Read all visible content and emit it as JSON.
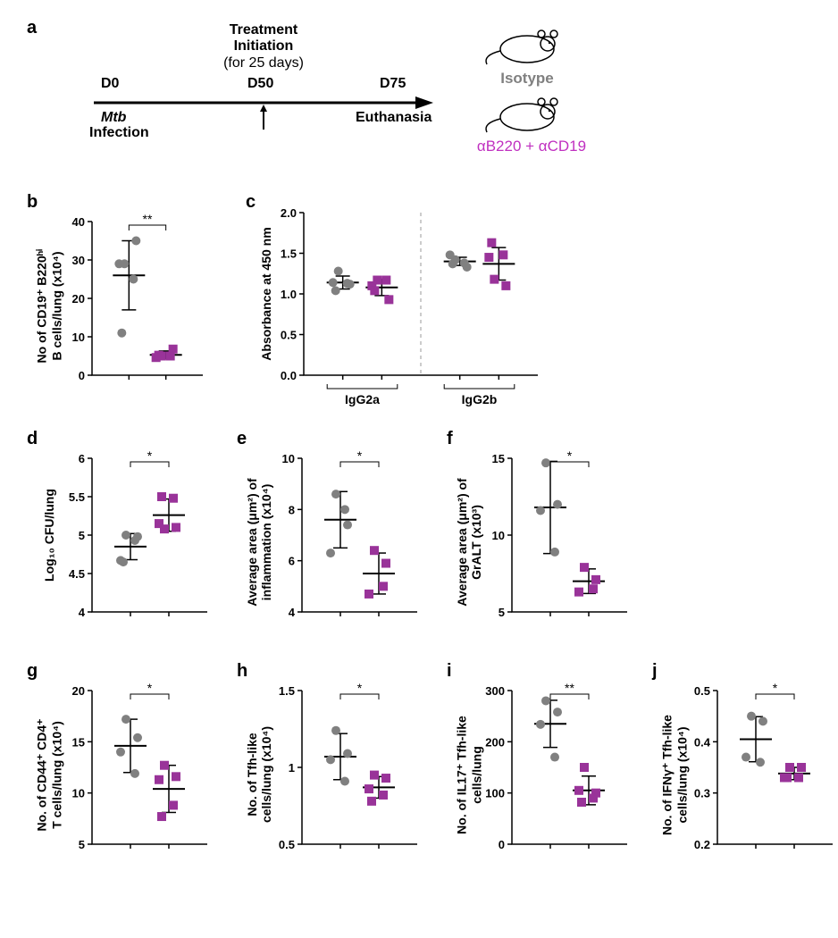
{
  "colors": {
    "gray_marker": "#808080",
    "purple_marker": "#993399",
    "purple_label": "#c030c0",
    "black": "#000000",
    "error_bar": "#000000"
  },
  "panel_a": {
    "label": "a",
    "title_lines": [
      "Treatment",
      "Initiation",
      "(for 25 days)"
    ],
    "d0": "D0",
    "d50": "D50",
    "d75": "D75",
    "mtb": "Mtb",
    "infection": "Infection",
    "euthanasia": "Euthanasia",
    "isotype_label": "Isotype",
    "treatment_label": "αB220 + αCD19"
  },
  "panel_b": {
    "label": "b",
    "ylabel": "No of CD19⁺ B220ʰⁱ\nB cells/lung (x10⁴)",
    "ylim": [
      0,
      40
    ],
    "yticks": [
      0,
      10,
      20,
      30,
      40
    ],
    "sig": "**",
    "groups": [
      {
        "color": "#808080",
        "shape": "circle",
        "mean": 26,
        "sd": 9,
        "points": [
          29,
          35,
          29,
          25,
          11
        ]
      },
      {
        "color": "#993399",
        "shape": "square",
        "mean": 5.3,
        "sd": 1.0,
        "points": [
          5.0,
          6.8,
          4.6,
          5.0,
          5.2
        ]
      }
    ]
  },
  "panel_c": {
    "label": "c",
    "ylabel": "Absorbance at 450 nm",
    "ylim": [
      0.0,
      2.0
    ],
    "yticks": [
      0.0,
      0.5,
      1.0,
      1.5,
      2.0
    ],
    "sections": [
      {
        "xlabel": "IgG2a",
        "groups": [
          {
            "color": "#808080",
            "shape": "circle",
            "mean": 1.14,
            "sd": 0.08,
            "points": [
              1.28,
              1.12,
              1.14,
              1.13,
              1.04
            ]
          },
          {
            "color": "#993399",
            "shape": "square",
            "mean": 1.08,
            "sd": 0.1,
            "points": [
              1.17,
              0.93,
              1.1,
              1.17,
              1.04
            ]
          }
        ]
      },
      {
        "xlabel": "IgG2b",
        "groups": [
          {
            "color": "#808080",
            "shape": "circle",
            "mean": 1.4,
            "sd": 0.05,
            "points": [
              1.42,
              1.33,
              1.48,
              1.38,
              1.37
            ]
          },
          {
            "color": "#993399",
            "shape": "square",
            "mean": 1.37,
            "sd": 0.2,
            "points": [
              1.18,
              1.1,
              1.45,
              1.48,
              1.63
            ]
          }
        ]
      }
    ]
  },
  "panel_d": {
    "label": "d",
    "ylabel": "Log₁₀ CFU/lung",
    "ylim": [
      4.0,
      6.0
    ],
    "yticks": [
      4.0,
      4.5,
      5.0,
      5.5,
      6.0
    ],
    "sig": "*",
    "groups": [
      {
        "color": "#808080",
        "shape": "circle",
        "mean": 4.85,
        "sd": 0.17,
        "points": [
          5.0,
          4.98,
          4.67,
          4.93,
          4.65
        ]
      },
      {
        "color": "#993399",
        "shape": "square",
        "mean": 5.26,
        "sd": 0.21,
        "points": [
          5.08,
          5.1,
          5.15,
          5.48,
          5.5
        ]
      }
    ]
  },
  "panel_e": {
    "label": "e",
    "ylabel": "Average area (μm²) of\ninflammation (x10⁴)",
    "ylim": [
      4,
      10
    ],
    "yticks": [
      4,
      6,
      8,
      10
    ],
    "sig": "*",
    "groups": [
      {
        "color": "#808080",
        "shape": "circle",
        "mean": 7.6,
        "sd": 1.1,
        "points": [
          8.6,
          7.4,
          6.3,
          8.0
        ]
      },
      {
        "color": "#993399",
        "shape": "square",
        "mean": 5.5,
        "sd": 0.8,
        "points": [
          6.4,
          5.9,
          4.7,
          5.0
        ]
      }
    ]
  },
  "panel_f": {
    "label": "f",
    "ylabel": "Average area (μm²) of\nGrALT (x10³)",
    "ylim": [
      5,
      15
    ],
    "yticks": [
      5,
      10,
      15
    ],
    "sig": "*",
    "groups": [
      {
        "color": "#808080",
        "shape": "circle",
        "mean": 11.8,
        "sd": 3.0,
        "points": [
          14.7,
          12.0,
          11.6,
          8.9
        ]
      },
      {
        "color": "#993399",
        "shape": "square",
        "mean": 7.0,
        "sd": 0.8,
        "points": [
          7.9,
          7.1,
          6.3,
          6.5
        ]
      }
    ]
  },
  "panel_g": {
    "label": "g",
    "ylabel": "No. of CD44⁺ CD4⁺\nT cells/lung (x10⁴)",
    "ylim": [
      5,
      20
    ],
    "yticks": [
      5,
      10,
      15,
      20
    ],
    "sig": "*",
    "groups": [
      {
        "color": "#808080",
        "shape": "circle",
        "mean": 14.6,
        "sd": 2.6,
        "points": [
          17.2,
          15.4,
          14.0,
          11.9
        ]
      },
      {
        "color": "#993399",
        "shape": "square",
        "mean": 10.4,
        "sd": 2.3,
        "points": [
          12.7,
          11.6,
          11.3,
          8.8,
          7.7
        ]
      }
    ]
  },
  "panel_h": {
    "label": "h",
    "ylabel": "No. of Tfh-like\ncells/lung (x10⁴)",
    "ylim": [
      0.5,
      1.5
    ],
    "yticks": [
      0.5,
      1.0,
      1.5
    ],
    "sig": "*",
    "groups": [
      {
        "color": "#808080",
        "shape": "circle",
        "mean": 1.07,
        "sd": 0.15,
        "points": [
          1.24,
          1.09,
          1.05,
          0.91
        ]
      },
      {
        "color": "#993399",
        "shape": "square",
        "mean": 0.87,
        "sd": 0.07,
        "points": [
          0.95,
          0.93,
          0.86,
          0.82,
          0.78
        ]
      }
    ]
  },
  "panel_i": {
    "label": "i",
    "ylabel": "No. of IL17⁺ Tfh-like\ncells/lung",
    "ylim": [
      0,
      300
    ],
    "yticks": [
      0,
      100,
      200,
      300
    ],
    "sig": "**",
    "groups": [
      {
        "color": "#808080",
        "shape": "circle",
        "mean": 235,
        "sd": 46,
        "points": [
          280,
          258,
          234,
          170
        ]
      },
      {
        "color": "#993399",
        "shape": "square",
        "mean": 105,
        "sd": 28,
        "points": [
          150,
          100,
          105,
          90,
          82
        ]
      }
    ]
  },
  "panel_j": {
    "label": "j",
    "ylabel": "No. of IFNγ⁺ Tfh-like\ncells/lung (x10⁴)",
    "ylim": [
      0.2,
      0.5
    ],
    "yticks": [
      0.2,
      0.3,
      0.4,
      0.5
    ],
    "sig": "*",
    "groups": [
      {
        "color": "#808080",
        "shape": "circle",
        "mean": 0.405,
        "sd": 0.044,
        "points": [
          0.45,
          0.44,
          0.37,
          0.36
        ]
      },
      {
        "color": "#993399",
        "shape": "square",
        "mean": 0.338,
        "sd": 0.012,
        "points": [
          0.35,
          0.35,
          0.33,
          0.33,
          0.33
        ]
      }
    ]
  }
}
